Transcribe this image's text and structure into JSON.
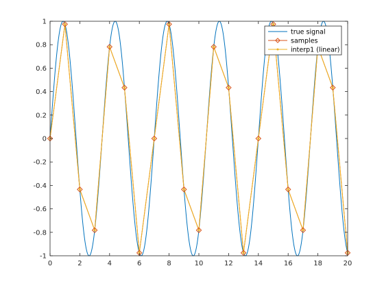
{
  "chart_data": {
    "type": "line",
    "title": "",
    "xlabel": "",
    "ylabel": "",
    "xlim": [
      0,
      20
    ],
    "ylim": [
      -1,
      1
    ],
    "xticks": [
      0,
      2,
      4,
      6,
      8,
      10,
      12,
      14,
      16,
      18,
      20
    ],
    "yticks": [
      -1,
      -0.8,
      -0.6,
      -0.4,
      -0.2,
      0,
      0.2,
      0.4,
      0.6,
      0.8,
      1
    ],
    "xtick_labels": [
      "0",
      "2",
      "4",
      "6",
      "8",
      "10",
      "12",
      "14",
      "16",
      "18",
      "20"
    ],
    "ytick_labels": [
      "-1",
      "-0.8",
      "-0.6",
      "-0.4",
      "-0.2",
      "0",
      "0.2",
      "0.4",
      "0.6",
      "0.8",
      "1"
    ],
    "grid": false,
    "legend_position": "top-right",
    "series": [
      {
        "name": "true signal",
        "color": "#0072bd",
        "function": "sin",
        "frequency": 0.2857,
        "x_range": [
          0,
          20
        ]
      },
      {
        "name": "samples",
        "color": "#d95319",
        "marker": "diamond",
        "x": [
          0,
          1,
          2,
          3,
          4,
          5,
          6,
          7,
          8,
          9,
          10,
          11,
          12,
          13,
          14,
          15,
          16,
          17,
          18,
          19,
          20
        ],
        "y": [
          0,
          0.975,
          -0.434,
          -0.782,
          0.782,
          0.434,
          -0.975,
          0,
          0.975,
          -0.434,
          -0.782,
          0.782,
          0.434,
          -0.975,
          0,
          0.975,
          -0.434,
          -0.782,
          0.782,
          0.434,
          -0.975
        ]
      },
      {
        "name": "interp1 (linear)",
        "color": "#edb120",
        "marker": "dot",
        "x": [
          0,
          1,
          2,
          3,
          4,
          5,
          6,
          7,
          8,
          9,
          10,
          11,
          12,
          13,
          14,
          15,
          16,
          17,
          18,
          19,
          20
        ],
        "y": [
          0,
          0.975,
          -0.434,
          -0.782,
          0.782,
          0.434,
          -0.975,
          0,
          0.975,
          -0.434,
          -0.782,
          0.782,
          0.434,
          -0.975,
          0,
          0.975,
          -0.434,
          -0.782,
          0.782,
          0.434,
          -0.975
        ]
      }
    ]
  }
}
